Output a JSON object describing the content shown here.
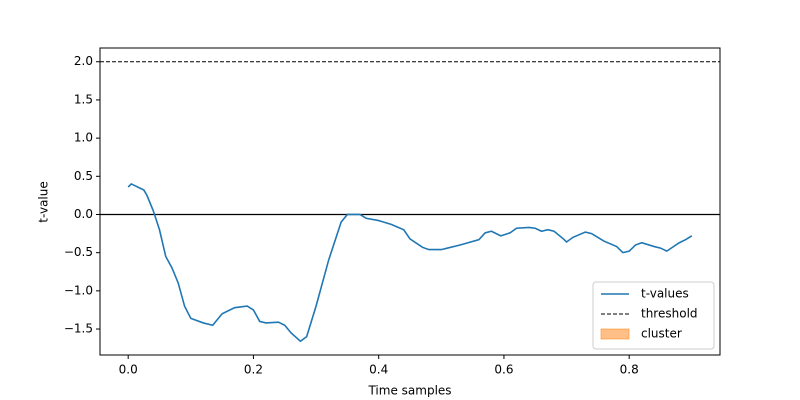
{
  "chart_data": {
    "type": "line",
    "x_label": "Time samples",
    "y_label": "t-value",
    "x": [
      0.0,
      0.005,
      0.01,
      0.02,
      0.025,
      0.03,
      0.04,
      0.05,
      0.06,
      0.07,
      0.08,
      0.09,
      0.1,
      0.12,
      0.135,
      0.15,
      0.17,
      0.19,
      0.2,
      0.21,
      0.22,
      0.24,
      0.25,
      0.26,
      0.275,
      0.285,
      0.3,
      0.32,
      0.34,
      0.35,
      0.37,
      0.38,
      0.4,
      0.42,
      0.44,
      0.45,
      0.47,
      0.48,
      0.5,
      0.51,
      0.53,
      0.56,
      0.57,
      0.58,
      0.595,
      0.61,
      0.62,
      0.64,
      0.65,
      0.66,
      0.67,
      0.68,
      0.695,
      0.7,
      0.71,
      0.73,
      0.74,
      0.75,
      0.76,
      0.78,
      0.79,
      0.8,
      0.81,
      0.82,
      0.84,
      0.85,
      0.86,
      0.88,
      0.89,
      0.9
    ],
    "series": [
      {
        "name": "t-values",
        "color": "#1f77b4",
        "values": [
          0.36,
          0.4,
          0.38,
          0.34,
          0.32,
          0.25,
          0.05,
          -0.2,
          -0.55,
          -0.7,
          -0.9,
          -1.2,
          -1.36,
          -1.42,
          -1.45,
          -1.3,
          -1.22,
          -1.2,
          -1.25,
          -1.4,
          -1.42,
          -1.41,
          -1.45,
          -1.55,
          -1.66,
          -1.6,
          -1.2,
          -0.6,
          -0.1,
          0.0,
          0.0,
          -0.05,
          -0.08,
          -0.13,
          -0.2,
          -0.32,
          -0.43,
          -0.46,
          -0.46,
          -0.44,
          -0.4,
          -0.33,
          -0.24,
          -0.22,
          -0.28,
          -0.24,
          -0.18,
          -0.17,
          -0.18,
          -0.22,
          -0.2,
          -0.22,
          -0.32,
          -0.36,
          -0.3,
          -0.23,
          -0.25,
          -0.3,
          -0.35,
          -0.42,
          -0.5,
          -0.48,
          -0.4,
          -0.37,
          -0.42,
          -0.44,
          -0.48,
          -0.37,
          -0.33,
          -0.28
        ]
      }
    ],
    "threshold": {
      "name": "threshold",
      "value": 2.0,
      "color": "#000000"
    },
    "zero_line": 0,
    "cluster": {
      "name": "cluster",
      "color": "#ff7f0e"
    },
    "xlim": [
      -0.045,
      0.945
    ],
    "ylim": [
      -1.84,
      2.18
    ],
    "xticks": [
      {
        "value": 0.0,
        "label": "0.0"
      },
      {
        "value": 0.2,
        "label": "0.2"
      },
      {
        "value": 0.4,
        "label": "0.4"
      },
      {
        "value": 0.6,
        "label": "0.6"
      },
      {
        "value": 0.8,
        "label": "0.8"
      }
    ],
    "yticks": [
      {
        "value": -1.5,
        "label": "−1.5"
      },
      {
        "value": -1.0,
        "label": "−1.0"
      },
      {
        "value": -0.5,
        "label": "−0.5"
      },
      {
        "value": 0.0,
        "label": "0.0"
      },
      {
        "value": 0.5,
        "label": "0.5"
      },
      {
        "value": 1.0,
        "label": "1.0"
      },
      {
        "value": 1.5,
        "label": "1.5"
      },
      {
        "value": 2.0,
        "label": "2.0"
      }
    ],
    "legend": "lower right"
  }
}
